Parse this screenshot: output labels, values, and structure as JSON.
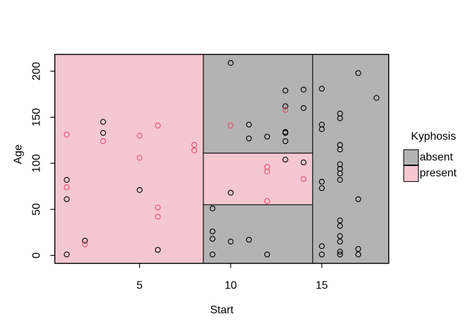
{
  "window": {
    "background": "#FFFFFF"
  },
  "chart_data": {
    "type": "scatter",
    "title": "",
    "xlabel": "Start",
    "ylabel": "Age",
    "x_ticks": [
      5,
      10,
      15
    ],
    "y_ticks": [
      0,
      50,
      100,
      150,
      200
    ],
    "x_range": [
      0.35,
      18.67
    ],
    "y_range": [
      -8.6,
      218.3
    ],
    "grid": "off",
    "frame": "box",
    "legend": {
      "title": "Kyphosis",
      "position": "right",
      "entries": [
        {
          "label": "absent",
          "color": "#B3B3B3"
        },
        {
          "label": "present",
          "color": "#F5C7D1"
        }
      ]
    },
    "partition_splits": {
      "Start": [
        8.5,
        14.5
      ],
      "Age": [
        55,
        111
      ]
    },
    "regions": [
      {
        "class": "present",
        "x": [
          0.35,
          8.5
        ],
        "y": [
          -8.6,
          218.3
        ]
      },
      {
        "class": "absent",
        "x": [
          8.5,
          14.5
        ],
        "y": [
          111,
          218.3
        ]
      },
      {
        "class": "present",
        "x": [
          8.5,
          14.5
        ],
        "y": [
          55,
          111
        ]
      },
      {
        "class": "absent",
        "x": [
          8.5,
          14.5
        ],
        "y": [
          -8.6,
          55
        ]
      },
      {
        "class": "absent",
        "x": [
          14.5,
          18.67
        ],
        "y": [
          -8.6,
          218.3
        ]
      }
    ],
    "series": [
      {
        "name": "absent",
        "marker": "open-circle",
        "color": "#000000",
        "points": [
          [
            3,
            145
          ],
          [
            3,
            133
          ],
          [
            1,
            82
          ],
          [
            1,
            61
          ],
          [
            5,
            71
          ],
          [
            2,
            16
          ],
          [
            6,
            6
          ],
          [
            1,
            1
          ],
          [
            10,
            209
          ],
          [
            11,
            142
          ],
          [
            11,
            127
          ],
          [
            12,
            129
          ],
          [
            13,
            179
          ],
          [
            14,
            180
          ],
          [
            13,
            162
          ],
          [
            14,
            160
          ],
          [
            13,
            134
          ],
          [
            13,
            133
          ],
          [
            13,
            124
          ],
          [
            10,
            68
          ],
          [
            13,
            104
          ],
          [
            14,
            101
          ],
          [
            9,
            51
          ],
          [
            9,
            26
          ],
          [
            9,
            18
          ],
          [
            10,
            15
          ],
          [
            11,
            17
          ],
          [
            9,
            1
          ],
          [
            12,
            1
          ],
          [
            17,
            198
          ],
          [
            18,
            171
          ],
          [
            15,
            181
          ],
          [
            16,
            154
          ],
          [
            16,
            149
          ],
          [
            15,
            142
          ],
          [
            15,
            137
          ],
          [
            16,
            120
          ],
          [
            16,
            115
          ],
          [
            16,
            99
          ],
          [
            16,
            94
          ],
          [
            16,
            89
          ],
          [
            16,
            82
          ],
          [
            15,
            80
          ],
          [
            15,
            73
          ],
          [
            17,
            61
          ],
          [
            16,
            38
          ],
          [
            16,
            32
          ],
          [
            16,
            21
          ],
          [
            16,
            15
          ],
          [
            15,
            10
          ],
          [
            15,
            1
          ],
          [
            16,
            4
          ],
          [
            16,
            1
          ],
          [
            17,
            7
          ],
          [
            17,
            1
          ]
        ]
      },
      {
        "name": "present",
        "marker": "open-circle",
        "color": "#DF536B",
        "points": [
          [
            1,
            131
          ],
          [
            3,
            124
          ],
          [
            5,
            130
          ],
          [
            6,
            141
          ],
          [
            8,
            120
          ],
          [
            8,
            114
          ],
          [
            5,
            106
          ],
          [
            1,
            74
          ],
          [
            6,
            52
          ],
          [
            6,
            42
          ],
          [
            2,
            12
          ],
          [
            10,
            141
          ],
          [
            13,
            158
          ],
          [
            12,
            96
          ],
          [
            12,
            91
          ],
          [
            12,
            59
          ],
          [
            14,
            83
          ]
        ]
      }
    ]
  }
}
